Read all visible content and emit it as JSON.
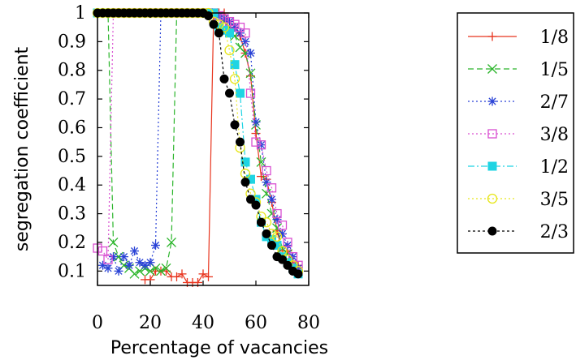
{
  "chart_data": {
    "type": "line",
    "title": "",
    "xlabel": "Percentage of vacancies",
    "ylabel": "segregation coefficient",
    "xlim": [
      0,
      80
    ],
    "ylim": [
      0.05,
      1.0
    ],
    "xticks": [
      0,
      20,
      40,
      60,
      80
    ],
    "yticks": [
      0.1,
      0.2,
      0.3,
      0.4,
      0.5,
      0.6,
      0.7,
      0.8,
      0.9,
      1
    ],
    "xtick_labels": [
      "0",
      "20",
      "40",
      "60",
      "80"
    ],
    "ytick_labels": [
      "0.1",
      "0.2",
      "0.3",
      "0.4",
      "0.5",
      "0.6",
      "0.7",
      "0.8",
      "0.9",
      "1"
    ],
    "grid": false,
    "legend_position": "right",
    "series": [
      {
        "name": "1/8",
        "color": "#e8351e",
        "dash": "solid",
        "marker": "plus",
        "x": [
          18,
          20,
          22,
          24,
          26,
          28,
          30,
          32,
          34,
          36,
          38,
          40,
          42,
          44,
          46,
          48,
          50,
          52,
          54,
          56,
          58,
          60,
          62,
          64,
          66,
          68,
          70,
          72,
          74,
          76
        ],
        "y": [
          0.07,
          0.07,
          0.1,
          0.1,
          0.1,
          0.08,
          0.08,
          0.09,
          0.06,
          0.06,
          0.06,
          0.09,
          0.08,
          1.0,
          1.0,
          1.0,
          0.97,
          0.95,
          0.92,
          0.86,
          0.78,
          0.58,
          0.43,
          0.42,
          0.34,
          0.24,
          0.17,
          0.17,
          0.13,
          0.12
        ]
      },
      {
        "name": "1/5",
        "color": "#2bb52b",
        "dash": "dashed",
        "marker": "x",
        "x": [
          2,
          4,
          6,
          8,
          10,
          12,
          14,
          16,
          18,
          20,
          22,
          24,
          26,
          28,
          30,
          32,
          34,
          36,
          38,
          40,
          42,
          44,
          46,
          48,
          50,
          52,
          54,
          56,
          58,
          60,
          62,
          64,
          66,
          68,
          70,
          72,
          74,
          76
        ],
        "y": [
          1.0,
          1.0,
          0.2,
          0.15,
          0.12,
          0.11,
          0.09,
          0.1,
          0.11,
          0.1,
          0.11,
          0.1,
          0.11,
          0.2,
          1.0,
          1.0,
          1.0,
          1.0,
          1.0,
          1.0,
          1.0,
          1.0,
          0.99,
          0.97,
          0.95,
          0.92,
          0.88,
          0.86,
          0.79,
          0.61,
          0.48,
          0.37,
          0.3,
          0.25,
          0.18,
          0.16,
          0.12,
          0.1
        ]
      },
      {
        "name": "2/7",
        "color": "#2942d6",
        "dash": "dotted",
        "marker": "star",
        "x": [
          2,
          4,
          6,
          8,
          10,
          12,
          14,
          16,
          18,
          20,
          22,
          24,
          26,
          28,
          30,
          32,
          34,
          36,
          38,
          40,
          42,
          44,
          46,
          48,
          50,
          52,
          54,
          56,
          58,
          60,
          62,
          64,
          66,
          68,
          70,
          72,
          74,
          76
        ],
        "y": [
          0.12,
          0.11,
          0.15,
          0.1,
          0.15,
          0.12,
          0.17,
          0.13,
          0.12,
          0.13,
          0.19,
          1.0,
          1.0,
          1.0,
          1.0,
          1.0,
          1.0,
          1.0,
          1.0,
          1.0,
          1.0,
          1.0,
          0.99,
          0.98,
          0.97,
          0.95,
          0.93,
          0.9,
          0.86,
          0.62,
          0.54,
          0.41,
          0.35,
          0.28,
          0.23,
          0.19,
          0.15,
          0.11
        ]
      },
      {
        "name": "3/8",
        "color": "#d94fd1",
        "dash": "dotted",
        "marker": "square-open",
        "x": [
          0,
          2,
          4,
          6,
          8,
          10,
          12,
          14,
          16,
          18,
          20,
          22,
          24,
          26,
          28,
          30,
          32,
          34,
          36,
          38,
          40,
          42,
          44,
          46,
          48,
          50,
          52,
          54,
          56,
          58,
          60,
          62,
          64,
          66,
          68,
          70,
          72,
          74,
          76
        ],
        "y": [
          0.18,
          0.17,
          0.14,
          1.0,
          1.0,
          1.0,
          1.0,
          1.0,
          1.0,
          1.0,
          1.0,
          1.0,
          1.0,
          1.0,
          1.0,
          1.0,
          1.0,
          1.0,
          1.0,
          1.0,
          1.0,
          1.0,
          1.0,
          0.99,
          0.98,
          0.97,
          0.96,
          0.95,
          0.93,
          0.72,
          0.55,
          0.54,
          0.45,
          0.39,
          0.3,
          0.26,
          0.2,
          0.15,
          0.12
        ]
      },
      {
        "name": "1/2",
        "color": "#1fd4e3",
        "dash": "dashdot",
        "marker": "square-filled",
        "x": [
          0,
          2,
          4,
          6,
          8,
          10,
          12,
          14,
          16,
          18,
          20,
          22,
          24,
          26,
          28,
          30,
          32,
          34,
          36,
          38,
          40,
          42,
          44,
          46,
          48,
          50,
          52,
          54,
          56,
          58,
          60,
          62,
          64,
          66,
          68,
          70,
          72,
          74,
          76
        ],
        "y": [
          1.0,
          1.0,
          1.0,
          1.0,
          1.0,
          1.0,
          1.0,
          1.0,
          1.0,
          1.0,
          1.0,
          1.0,
          1.0,
          1.0,
          1.0,
          1.0,
          1.0,
          1.0,
          1.0,
          1.0,
          1.0,
          1.0,
          1.0,
          0.95,
          0.94,
          0.93,
          0.82,
          0.72,
          0.48,
          0.42,
          0.35,
          0.27,
          0.22,
          0.21,
          0.19,
          0.15,
          0.13,
          0.11,
          0.09
        ]
      },
      {
        "name": "3/5",
        "color": "#e7e61a",
        "dash": "dotted",
        "marker": "circle-open",
        "x": [
          0,
          2,
          4,
          6,
          8,
          10,
          12,
          14,
          16,
          18,
          20,
          22,
          24,
          26,
          28,
          30,
          32,
          34,
          36,
          38,
          40,
          42,
          44,
          46,
          48,
          50,
          52,
          54,
          56,
          58,
          60,
          62,
          64,
          66,
          68,
          70,
          72,
          74,
          76
        ],
        "y": [
          1.0,
          1.0,
          1.0,
          1.0,
          1.0,
          1.0,
          1.0,
          1.0,
          1.0,
          1.0,
          1.0,
          1.0,
          1.0,
          1.0,
          1.0,
          1.0,
          1.0,
          1.0,
          1.0,
          1.0,
          1.0,
          1.0,
          0.97,
          0.96,
          0.95,
          0.87,
          0.77,
          0.53,
          0.44,
          0.37,
          0.34,
          0.29,
          0.27,
          0.23,
          0.22,
          0.17,
          0.14,
          0.12,
          0.1
        ]
      },
      {
        "name": "2/3",
        "color": "#000000",
        "dash": "dashed-fine",
        "marker": "circle-filled",
        "x": [
          0,
          2,
          4,
          6,
          8,
          10,
          12,
          14,
          16,
          18,
          20,
          22,
          24,
          26,
          28,
          30,
          32,
          34,
          36,
          38,
          40,
          42,
          44,
          46,
          48,
          50,
          52,
          54,
          56,
          58,
          60,
          62,
          64,
          66,
          68,
          70,
          72,
          74,
          76
        ],
        "y": [
          1.0,
          1.0,
          1.0,
          1.0,
          1.0,
          1.0,
          1.0,
          1.0,
          1.0,
          1.0,
          1.0,
          1.0,
          1.0,
          1.0,
          1.0,
          1.0,
          1.0,
          1.0,
          1.0,
          1.0,
          1.0,
          0.99,
          0.96,
          0.93,
          0.77,
          0.72,
          0.61,
          0.55,
          0.41,
          0.35,
          0.33,
          0.27,
          0.23,
          0.19,
          0.15,
          0.14,
          0.12,
          0.1,
          0.09
        ]
      }
    ]
  }
}
